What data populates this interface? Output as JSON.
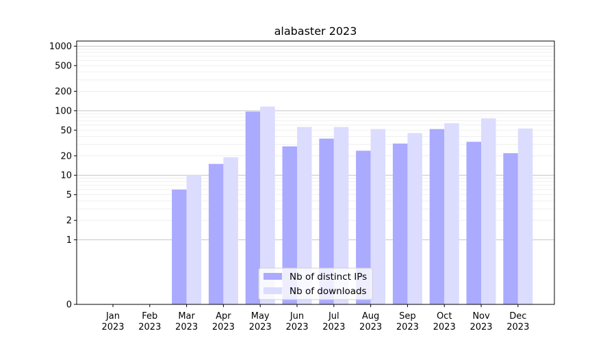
{
  "chart_data": {
    "type": "bar",
    "title": "alabaster 2023",
    "xlabel": "",
    "ylabel": "",
    "yscale": "symlog",
    "ylim": [
      0,
      1200
    ],
    "y_ticks": [
      0,
      1,
      2,
      5,
      10,
      20,
      50,
      100,
      200,
      500,
      1000
    ],
    "grid": "horizontal",
    "legend_position": "bottom-center",
    "categories": [
      {
        "month": "Jan",
        "year": "2023"
      },
      {
        "month": "Feb",
        "year": "2023"
      },
      {
        "month": "Mar",
        "year": "2023"
      },
      {
        "month": "Apr",
        "year": "2023"
      },
      {
        "month": "May",
        "year": "2023"
      },
      {
        "month": "Jun",
        "year": "2023"
      },
      {
        "month": "Jul",
        "year": "2023"
      },
      {
        "month": "Aug",
        "year": "2023"
      },
      {
        "month": "Sep",
        "year": "2023"
      },
      {
        "month": "Oct",
        "year": "2023"
      },
      {
        "month": "Nov",
        "year": "2023"
      },
      {
        "month": "Dec",
        "year": "2023"
      }
    ],
    "series": [
      {
        "name": "Nb of distinct IPs",
        "color": "#aaaaff",
        "values": [
          0,
          0,
          6,
          15,
          97,
          28,
          37,
          24,
          31,
          52,
          33,
          22
        ]
      },
      {
        "name": "Nb of downloads",
        "color": "#dcdcff",
        "values": [
          0,
          0,
          10,
          19,
          116,
          56,
          56,
          52,
          45,
          64,
          76,
          53
        ]
      }
    ]
  }
}
